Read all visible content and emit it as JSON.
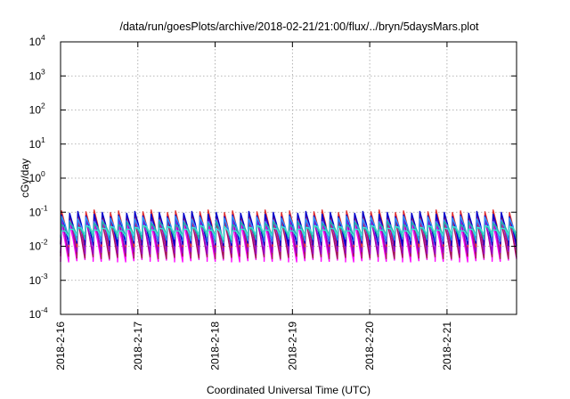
{
  "window_title": "/data/run/goesPlots/archive/2018-02-21/21:00/flux/../bryn/5daysMars.plot",
  "chart_data": {
    "type": "line",
    "title": "/data/run/goesPlots/archive/2018-02-21/21:00/flux/../bryn/5daysMars.plot",
    "xlabel": "Coordinated Universal Time (UTC)",
    "ylabel": "cGy/day",
    "yscale": "log",
    "ylim": [
      0.0001,
      10000
    ],
    "y_tick_labels": [
      {
        "base": "10",
        "exp": "-4",
        "value": 0.0001
      },
      {
        "base": "10",
        "exp": "-3",
        "value": 0.001
      },
      {
        "base": "10",
        "exp": "-2",
        "value": 0.01
      },
      {
        "base": "10",
        "exp": "-1",
        "value": 0.1
      },
      {
        "base": "10",
        "exp": "0",
        "value": 1
      },
      {
        "base": "10",
        "exp": "1",
        "value": 10
      },
      {
        "base": "10",
        "exp": "2",
        "value": 100
      },
      {
        "base": "10",
        "exp": "3",
        "value": 1000
      },
      {
        "base": "10",
        "exp": "4",
        "value": 10000
      }
    ],
    "x_tick_labels": [
      "2018-2-16",
      "2018-2-17",
      "2018-2-18",
      "2018-2-19",
      "2018-2-20",
      "2018-2-21"
    ],
    "xlim_days": [
      0,
      5.9
    ],
    "grid": true,
    "legend": "none",
    "series": [
      {
        "color": "#ff00ff",
        "peak": 0.05,
        "trough": 0.004
      },
      {
        "color": "#a02050",
        "peak": 0.06,
        "trough": 0.005
      },
      {
        "color": "#9400d3",
        "peak": 0.07,
        "trough": 0.007
      },
      {
        "color": "#e03030",
        "peak": 0.1,
        "trough": 0.011
      },
      {
        "color": "#0000cd",
        "peak": 0.09,
        "trough": 0.012
      },
      {
        "color": "#3090ff",
        "peak": 0.065,
        "trough": 0.016
      },
      {
        "color": "#20b2aa",
        "peak": 0.045,
        "trough": 0.02
      },
      {
        "color": "#40e0d0",
        "peak": 0.035,
        "trough": 0.022
      }
    ],
    "cycles_per_day": 9.5,
    "dips": [
      {
        "day": 2.2,
        "value": 0.005
      },
      {
        "day": 3.05,
        "value": 0.007
      }
    ]
  }
}
